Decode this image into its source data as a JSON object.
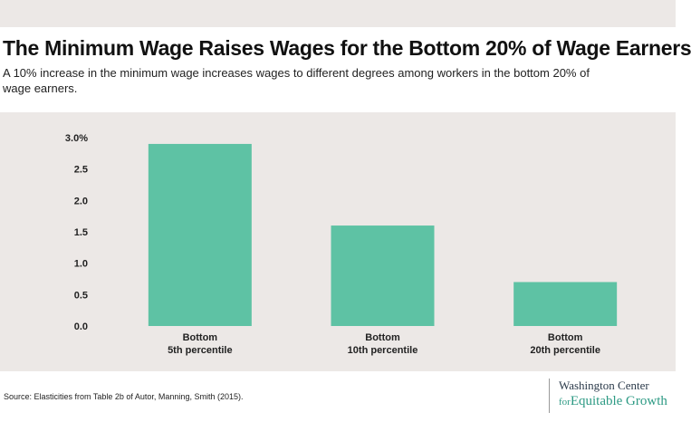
{
  "header": {
    "title": "The Minimum Wage Raises Wages for the Bottom 20% of Wage Earners",
    "subtitle": "A 10%  increase in the minimum wage increases wages to different degrees among workers in the bottom 20% of wage earners."
  },
  "footer": {
    "source": "Source: Elasticities from Table 2b of Autor, Manning, Smith (2015).",
    "logo_line1": "Washington Center",
    "logo_line2": "Equitable Growth",
    "logo_mark": "for"
  },
  "colors": {
    "bar": "#5ec2a4",
    "plot_background": "#ece8e6"
  },
  "chart_data": {
    "type": "bar",
    "categories": [
      [
        "Bottom",
        "5th percentile"
      ],
      [
        "Bottom",
        "10th percentile"
      ],
      [
        "Bottom",
        "20th percentile"
      ]
    ],
    "values": [
      2.9,
      1.6,
      0.7
    ],
    "yticks": [
      "0.0",
      "0.5",
      "1.0",
      "1.5",
      "2.0",
      "2.5",
      "3.0%"
    ],
    "ylim": [
      0,
      3.0
    ],
    "grid": false,
    "legend": "none"
  }
}
